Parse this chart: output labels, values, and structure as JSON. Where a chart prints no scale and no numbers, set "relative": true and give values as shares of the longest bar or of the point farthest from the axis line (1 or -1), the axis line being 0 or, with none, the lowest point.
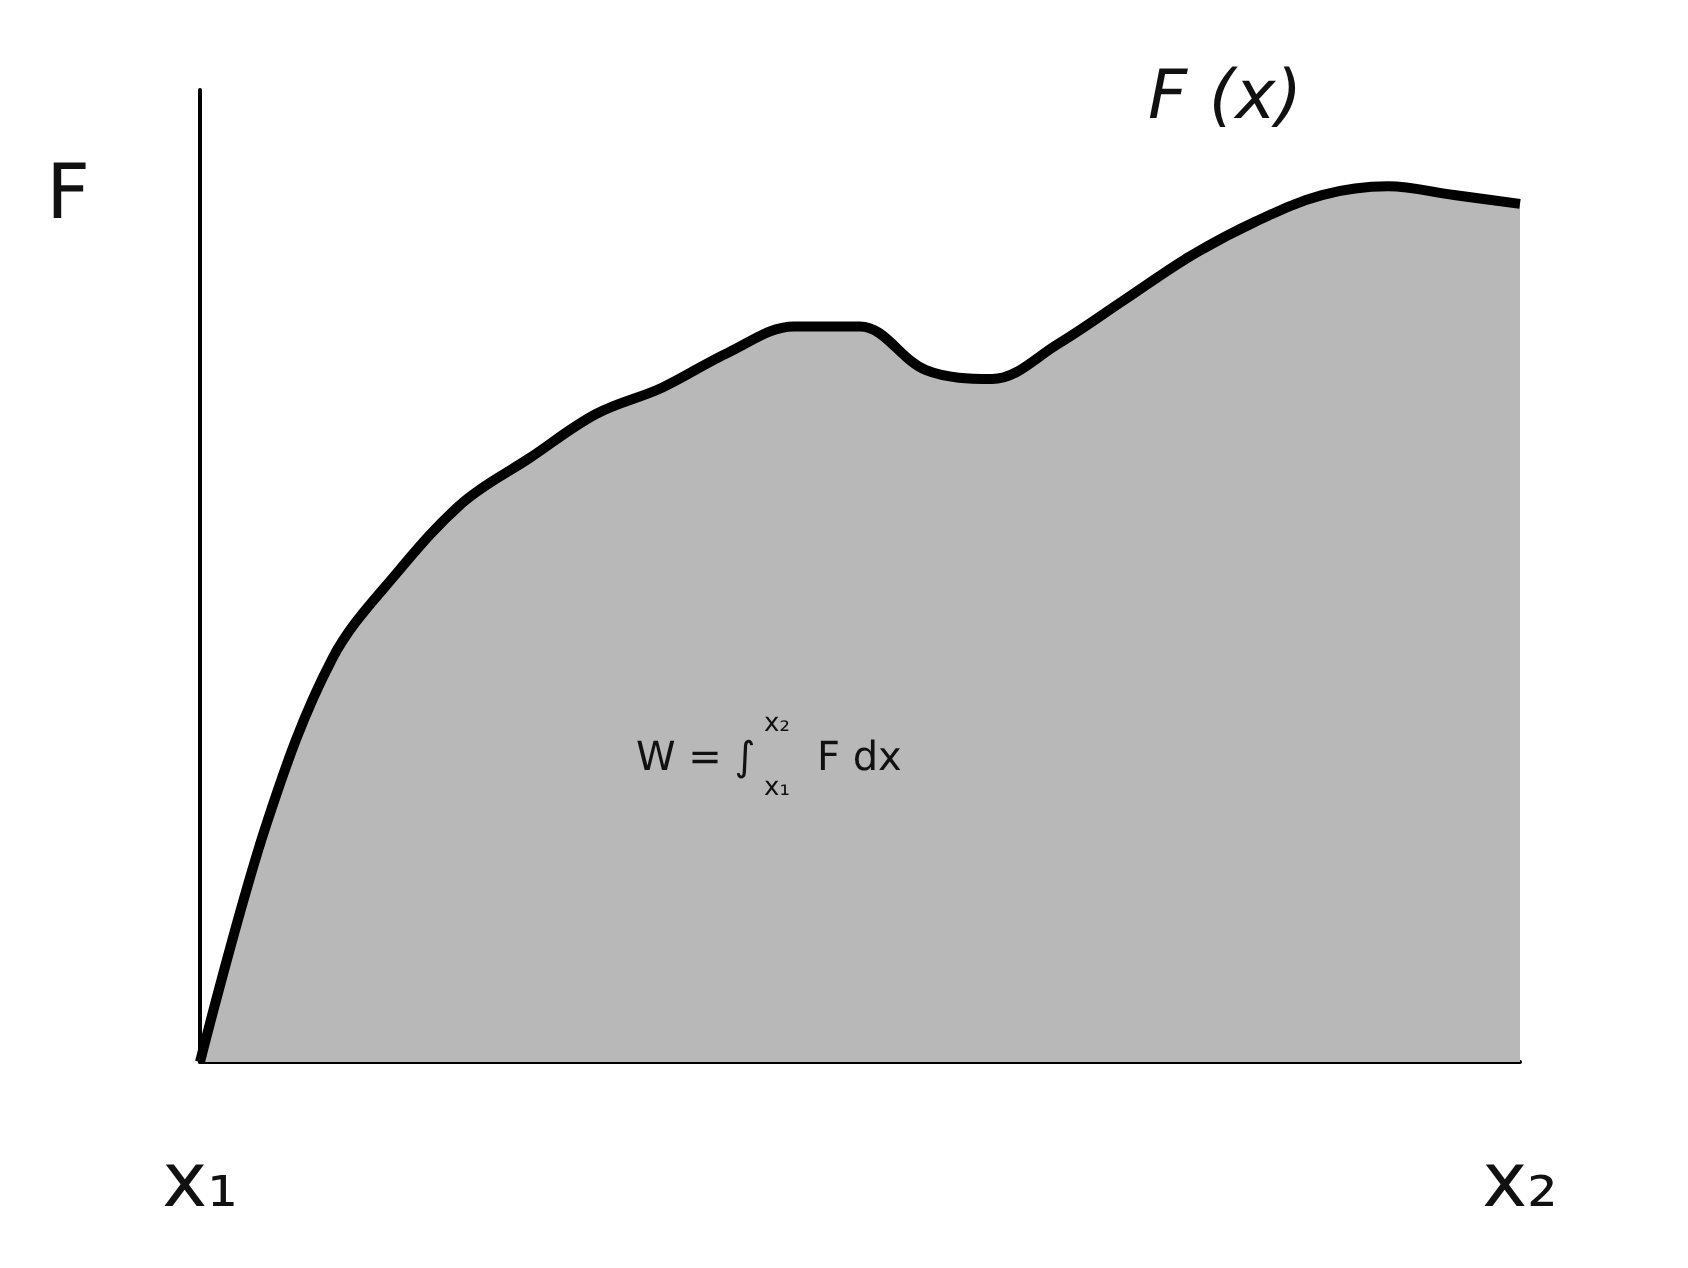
{
  "chart_data": {
    "type": "area",
    "relative": true,
    "ylabel": "F",
    "categories": [
      "x₁",
      null,
      null,
      null,
      null,
      null,
      null,
      null,
      null,
      null,
      null,
      null,
      null,
      null,
      null,
      null,
      null,
      null,
      null,
      null,
      "x₂"
    ],
    "grid": false,
    "legend": false,
    "marker": "none",
    "line_style": "solid",
    "annotations": [
      "W = ∫$^{x₂}$$_{x₁}$ F dx"
    ],
    "series": [
      {
        "name": "F (x)",
        "color": "#b8b8b8",
        "values": [
          0,
          0.27,
          0.46,
          0.56,
          0.64,
          0.69,
          0.74,
          0.77,
          0.81,
          0.84,
          0.84,
          0.79,
          0.78,
          0.82,
          0.87,
          0.92,
          0.96,
          0.99,
          1.0,
          0.99,
          0.98
        ]
      }
    ]
  }
}
